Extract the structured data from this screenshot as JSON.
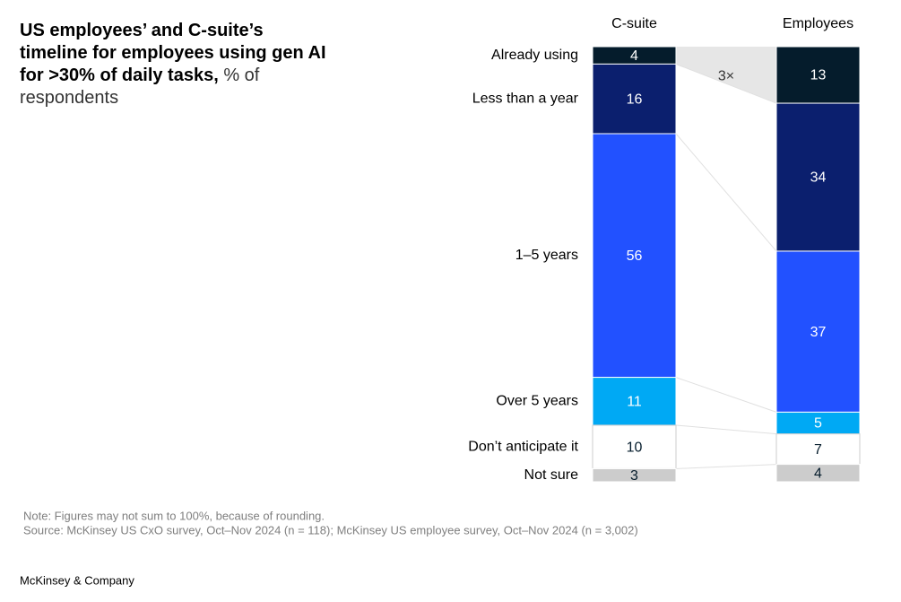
{
  "chart_data": {
    "type": "stacked_bar",
    "title": "US employees’ and C-suite’s timeline for employees using gen AI for >30% of daily tasks,",
    "subtitle": "% of respondents",
    "categories": [
      "C-suite",
      "Employees"
    ],
    "series": [
      {
        "name": "Already using",
        "color": "#051c2c",
        "values": [
          4,
          13
        ]
      },
      {
        "name": "Less than a year",
        "color": "#0b1f6e",
        "values": [
          16,
          34
        ]
      },
      {
        "name": "1–5 years",
        "color": "#2251ff",
        "values": [
          56,
          37
        ]
      },
      {
        "name": "Over 5 years",
        "color": "#00a9f4",
        "values": [
          11,
          5
        ]
      },
      {
        "name": "Don’t anticipate it",
        "color": "#ffffff",
        "values": [
          10,
          7
        ]
      },
      {
        "name": "Not sure",
        "color": "#cccccc",
        "values": [
          3,
          4
        ]
      }
    ],
    "annotation": "3×",
    "note": "Note: Figures may not sum to 100%, because of rounding.",
    "source": "Source: McKinsey US CxO survey, Oct–Nov 2024 (n = 118); McKinsey US employee survey, Oct–Nov 2024 (n = 3,002)",
    "footer": "McKinsey & Company"
  }
}
